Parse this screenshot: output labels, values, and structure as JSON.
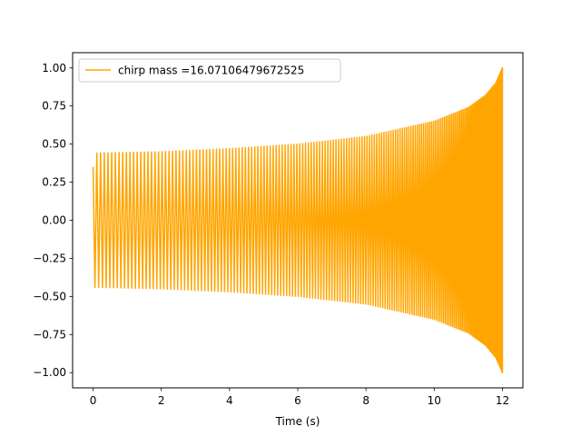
{
  "chart_data": {
    "type": "line",
    "title": "",
    "xlabel": "Time (s)",
    "ylabel": "",
    "xlim": [
      -0.6,
      12.6
    ],
    "ylim": [
      -1.1,
      1.1
    ],
    "x_ticks": [
      0,
      2,
      4,
      6,
      8,
      10,
      12
    ],
    "y_ticks": [
      -1.0,
      -0.75,
      -0.5,
      -0.25,
      0.0,
      0.25,
      0.5,
      0.75,
      1.0
    ],
    "x_tick_labels": [
      "0",
      "2",
      "4",
      "6",
      "8",
      "10",
      "12"
    ],
    "y_tick_labels": [
      "−1.00",
      "−0.75",
      "−0.50",
      "−0.25",
      "0.00",
      "0.25",
      "0.50",
      "0.75",
      "1.00"
    ],
    "grid": false,
    "legend_position": "top-left",
    "series": [
      {
        "name": "chirp mass =16.07106479672525",
        "color": "#ffa500",
        "shape": "chirp",
        "t_start": 0,
        "t_end": 12,
        "initial_value": 0.35,
        "envelope": [
          {
            "t": 0.0,
            "amp": 0.44
          },
          {
            "t": 2.0,
            "amp": 0.45
          },
          {
            "t": 4.0,
            "amp": 0.47
          },
          {
            "t": 6.0,
            "amp": 0.5
          },
          {
            "t": 8.0,
            "amp": 0.55
          },
          {
            "t": 10.0,
            "amp": 0.65
          },
          {
            "t": 11.0,
            "amp": 0.74
          },
          {
            "t": 11.5,
            "amp": 0.82
          },
          {
            "t": 11.8,
            "amp": 0.9
          },
          {
            "t": 12.0,
            "amp": 1.0
          }
        ]
      }
    ]
  },
  "colors": {
    "series": "#ffa500",
    "axes": "#000000",
    "background": "#ffffff"
  }
}
